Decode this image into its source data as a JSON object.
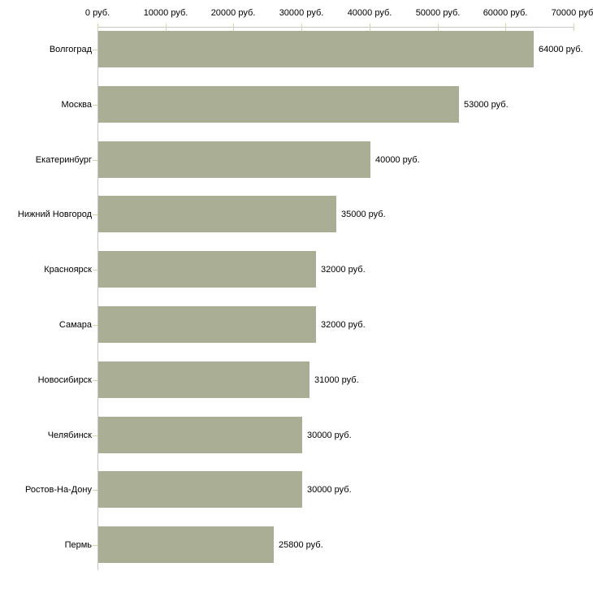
{
  "chart_data": {
    "type": "bar",
    "orientation": "horizontal",
    "title": "",
    "xlabel": "",
    "ylabel": "",
    "unit": "руб.",
    "categories": [
      "Волгоград",
      "Москва",
      "Екатеринбург",
      "Нижний Новгород",
      "Красноярск",
      "Самара",
      "Новосибирск",
      "Челябинск",
      "Ростов-На-Дону",
      "Пермь"
    ],
    "values": [
      64000,
      53000,
      40000,
      35000,
      32000,
      32000,
      31000,
      30000,
      30000,
      25800
    ],
    "value_labels": [
      "64000 руб.",
      "53000 руб.",
      "40000 руб.",
      "35000 руб.",
      "32000 руб.",
      "32000 руб.",
      "31000 руб.",
      "30000 руб.",
      "30000 руб.",
      "25800 руб."
    ],
    "x_tick_values": [
      0,
      10000,
      20000,
      30000,
      40000,
      50000,
      60000,
      70000
    ],
    "x_tick_labels": [
      "0 руб.",
      "10000 руб.",
      "20000 руб.",
      "30000 руб.",
      "40000 руб.",
      "50000 руб.",
      "60000 руб.",
      "70000 руб."
    ],
    "xlim": [
      0,
      70000
    ],
    "grid": false,
    "legend": "none",
    "colors": {
      "bar": "#aaae95",
      "axis_line": "#c6c6c6",
      "tick_mark": "#d2d5aa",
      "text": "#000000",
      "background": "#ffffff"
    }
  }
}
